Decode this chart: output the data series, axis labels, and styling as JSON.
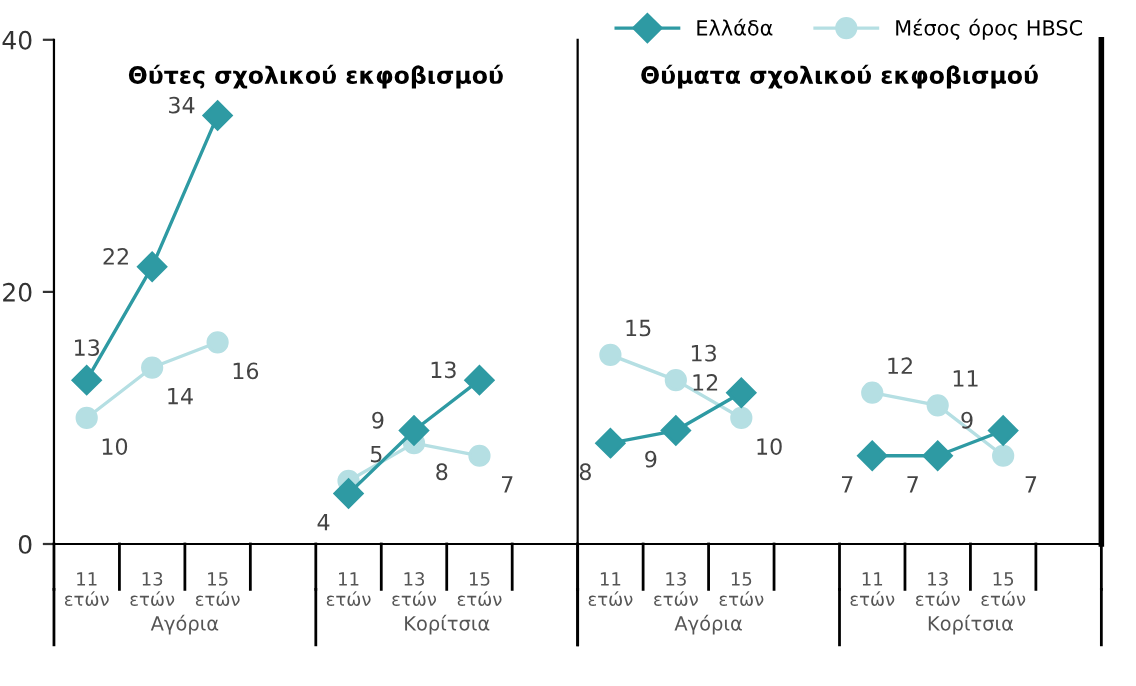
{
  "chart_data": [
    {
      "type": "line",
      "title": "Θύτες σχολικού εκφοβισμού",
      "categories": [
        "11 ετών",
        "13 ετών",
        "15 ετών",
        null,
        "11 ετών",
        "13 ετών",
        "15 ετών",
        null
      ],
      "series": [
        {
          "name": "Ελλάδα",
          "color": "#2e9aa3",
          "marker": "diamond",
          "values": [
            13,
            22,
            34,
            null,
            4,
            9,
            13,
            null
          ]
        },
        {
          "name": "Μέσος όρος HBSC",
          "color": "#b5dfe3",
          "marker": "circle",
          "values": [
            10,
            14,
            16,
            null,
            5,
            8,
            7,
            null
          ]
        }
      ],
      "ylim": [
        0,
        40
      ],
      "yticks": [
        0,
        20,
        40
      ],
      "data_labels": true,
      "grid": false,
      "legend": "top right",
      "annotations": [
        "Αγόρια",
        "Κορίτσια"
      ]
    },
    {
      "type": "line",
      "title": "Θύματα σχολικού εκφοβισμού",
      "categories": [
        "11 ετών",
        "13 ετών",
        "15 ετών",
        null,
        "11 ετών",
        "13 ετών",
        "15 ετών",
        null
      ],
      "series": [
        {
          "name": "Ελλάδα",
          "color": "#2e9aa3",
          "marker": "diamond",
          "values": [
            8,
            9,
            12,
            null,
            7,
            7,
            9,
            null
          ]
        },
        {
          "name": "Μέσος όρος HBSC",
          "color": "#b5dfe3",
          "marker": "circle",
          "values": [
            15,
            13,
            10,
            null,
            12,
            11,
            7,
            null
          ]
        }
      ],
      "ylim": [
        0,
        40
      ],
      "yticks": [
        0,
        20,
        40
      ],
      "tick_labels": "x",
      "data_labels": true,
      "grid": false,
      "annotations": [
        "Αγόρια",
        "Κορίτσια"
      ]
    }
  ]
}
